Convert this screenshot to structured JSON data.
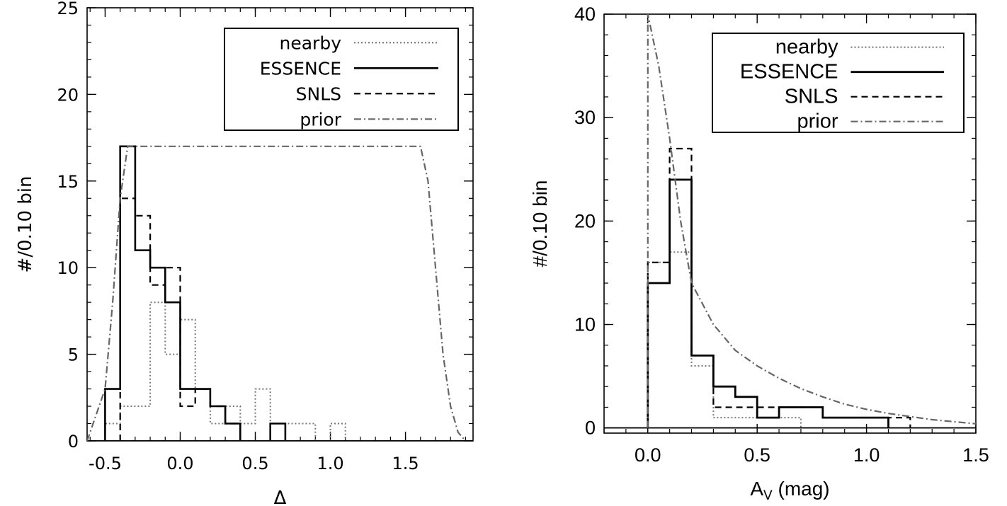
{
  "chart_data": [
    {
      "type": "histogram",
      "xlabel": "Δ",
      "ylabel": "#/0.10 bin",
      "xlim": [
        -0.62,
        1.95
      ],
      "ylim": [
        0,
        25
      ],
      "x_ticks": [
        "-0.5",
        "0.0",
        "0.5",
        "1.0",
        "1.5"
      ],
      "y_ticks": [
        "0",
        "5",
        "10",
        "15",
        "20",
        "25"
      ],
      "bin_width": 0.1,
      "legend_position": "top-right",
      "legend": [
        "nearby",
        "ESSENCE",
        "SNLS",
        "prior"
      ],
      "series": [
        {
          "name": "nearby",
          "style": "dotted",
          "color": "#777777",
          "bins": [
            [
              -0.45,
              1
            ],
            [
              -0.35,
              2
            ],
            [
              -0.25,
              2
            ],
            [
              -0.15,
              8
            ],
            [
              -0.05,
              5
            ],
            [
              0.05,
              7
            ],
            [
              0.15,
              3
            ],
            [
              0.25,
              1
            ],
            [
              0.35,
              2
            ],
            [
              0.45,
              1
            ],
            [
              0.55,
              3
            ],
            [
              0.65,
              1
            ],
            [
              0.75,
              1
            ],
            [
              0.85,
              1
            ],
            [
              1.05,
              1
            ]
          ]
        },
        {
          "name": "ESSENCE",
          "style": "solid",
          "color": "#000000",
          "bins": [
            [
              -0.45,
              3
            ],
            [
              -0.35,
              17
            ],
            [
              -0.25,
              11
            ],
            [
              -0.15,
              10
            ],
            [
              -0.05,
              8
            ],
            [
              0.05,
              3
            ],
            [
              0.15,
              3
            ],
            [
              0.25,
              2
            ],
            [
              0.35,
              1
            ],
            [
              0.65,
              1
            ]
          ]
        },
        {
          "name": "SNLS",
          "style": "dashed",
          "color": "#000000",
          "bins": [
            [
              -0.35,
              14
            ],
            [
              -0.25,
              13
            ],
            [
              -0.15,
              9
            ],
            [
              -0.05,
              10
            ],
            [
              0.05,
              2
            ],
            [
              0.15,
              3
            ],
            [
              0.25,
              2
            ],
            [
              0.35,
              1
            ]
          ]
        },
        {
          "name": "prior",
          "style": "dash-dot",
          "color": "#666666",
          "curve": [
            [
              -0.62,
              0
            ],
            [
              -0.5,
              3
            ],
            [
              -0.45,
              8
            ],
            [
              -0.4,
              14
            ],
            [
              -0.35,
              17
            ],
            [
              1.6,
              17
            ],
            [
              1.65,
              15
            ],
            [
              1.7,
              10
            ],
            [
              1.75,
              5
            ],
            [
              1.8,
              2
            ],
            [
              1.85,
              0.5
            ],
            [
              1.9,
              0
            ]
          ]
        }
      ]
    },
    {
      "type": "histogram",
      "xlabel": "A",
      "xlabel_subscript": "V",
      "xlabel_suffix": " (mag)",
      "ylabel": "#/0.10 bin",
      "xlim": [
        -0.2,
        1.5
      ],
      "ylim": [
        -0.5,
        40
      ],
      "x_ticks": [
        "0.0",
        "0.5",
        "1.0",
        "1.5"
      ],
      "y_ticks": [
        "0",
        "10",
        "20",
        "30",
        "40"
      ],
      "bin_width": 0.1,
      "legend_position": "top-right",
      "legend": [
        "nearby",
        "ESSENCE",
        "SNLS",
        "prior"
      ],
      "series": [
        {
          "name": "nearby",
          "style": "dotted",
          "color": "#777777",
          "bins": [
            [
              0.05,
              16
            ],
            [
              0.15,
              17
            ],
            [
              0.25,
              6
            ],
            [
              0.35,
              1
            ],
            [
              0.45,
              1
            ],
            [
              0.55,
              1
            ],
            [
              0.65,
              1
            ]
          ]
        },
        {
          "name": "ESSENCE",
          "style": "solid",
          "color": "#000000",
          "bins": [
            [
              0.05,
              14
            ],
            [
              0.15,
              24
            ],
            [
              0.25,
              7
            ],
            [
              0.35,
              4
            ],
            [
              0.45,
              3
            ],
            [
              0.55,
              1
            ],
            [
              0.65,
              2
            ],
            [
              0.75,
              2
            ],
            [
              0.85,
              1
            ],
            [
              0.95,
              1
            ],
            [
              1.05,
              1
            ]
          ]
        },
        {
          "name": "SNLS",
          "style": "dashed",
          "color": "#000000",
          "bins": [
            [
              0.05,
              16
            ],
            [
              0.15,
              27
            ],
            [
              0.25,
              7
            ],
            [
              0.35,
              2
            ],
            [
              0.45,
              2
            ],
            [
              0.55,
              2
            ],
            [
              0.65,
              2
            ],
            [
              0.75,
              2
            ],
            [
              0.85,
              1
            ],
            [
              0.95,
              1
            ],
            [
              1.05,
              1
            ],
            [
              1.15,
              1
            ]
          ]
        },
        {
          "name": "prior",
          "style": "dash-dot",
          "color": "#666666",
          "curve": [
            [
              0.0,
              0
            ],
            [
              0.0,
              40
            ],
            [
              0.05,
              35
            ],
            [
              0.1,
              28
            ],
            [
              0.15,
              20
            ],
            [
              0.2,
              14
            ],
            [
              0.3,
              10
            ],
            [
              0.4,
              7.5
            ],
            [
              0.5,
              6
            ],
            [
              0.6,
              4.8
            ],
            [
              0.7,
              3.8
            ],
            [
              0.8,
              3
            ],
            [
              0.9,
              2.3
            ],
            [
              1.0,
              1.8
            ],
            [
              1.1,
              1.4
            ],
            [
              1.2,
              1.1
            ],
            [
              1.3,
              0.8
            ],
            [
              1.4,
              0.6
            ],
            [
              1.5,
              0.4
            ]
          ]
        }
      ]
    }
  ]
}
